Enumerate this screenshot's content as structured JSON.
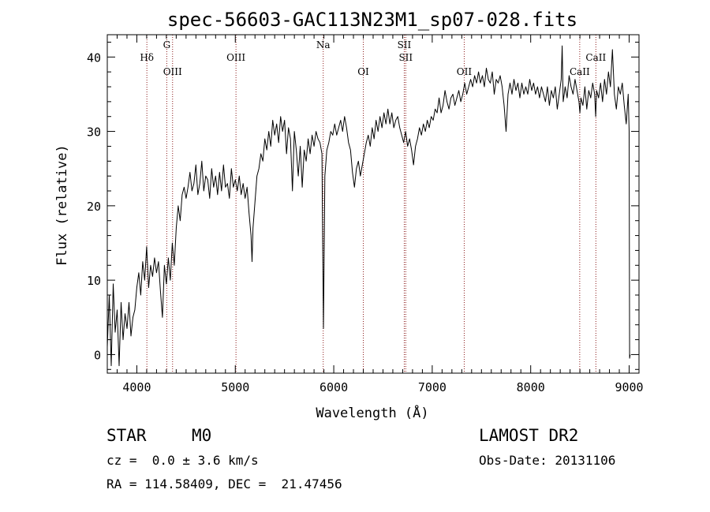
{
  "chart_data": {
    "type": "line",
    "title": "spec-56603-GAC113N23M1_sp07-028.fits",
    "xlabel": "Wavelength (Å)",
    "ylabel": "Flux (relative)",
    "xlim": [
      3700,
      9100
    ],
    "ylim": [
      -2.5,
      43
    ],
    "xticks": [
      4000,
      5000,
      6000,
      7000,
      8000,
      9000
    ],
    "yticks": [
      0,
      10,
      20,
      30,
      40
    ],
    "series_color": "#000000",
    "line_color": "#8b1a1a",
    "spectrum": [
      [
        3700,
        1.0
      ],
      [
        3720,
        8.0
      ],
      [
        3740,
        -1.5
      ],
      [
        3760,
        9.5
      ],
      [
        3780,
        3.0
      ],
      [
        3800,
        6.0
      ],
      [
        3820,
        -1.5
      ],
      [
        3840,
        7.0
      ],
      [
        3860,
        2.0
      ],
      [
        3880,
        5.5
      ],
      [
        3900,
        3.5
      ],
      [
        3920,
        7.0
      ],
      [
        3940,
        2.5
      ],
      [
        3960,
        5.0
      ],
      [
        3980,
        6.0
      ],
      [
        4000,
        9.0
      ],
      [
        4020,
        11.0
      ],
      [
        4040,
        8.0
      ],
      [
        4060,
        12.5
      ],
      [
        4080,
        10.0
      ],
      [
        4100,
        14.5
      ],
      [
        4120,
        9.0
      ],
      [
        4140,
        12.0
      ],
      [
        4160,
        10.5
      ],
      [
        4180,
        13.0
      ],
      [
        4200,
        11.0
      ],
      [
        4220,
        12.5
      ],
      [
        4240,
        8.5
      ],
      [
        4260,
        5.0
      ],
      [
        4280,
        12.0
      ],
      [
        4300,
        9.5
      ],
      [
        4320,
        13.0
      ],
      [
        4340,
        10.0
      ],
      [
        4360,
        15.0
      ],
      [
        4380,
        12.0
      ],
      [
        4400,
        17.0
      ],
      [
        4420,
        20.0
      ],
      [
        4440,
        18.0
      ],
      [
        4460,
        21.5
      ],
      [
        4480,
        22.5
      ],
      [
        4500,
        21.0
      ],
      [
        4520,
        22.5
      ],
      [
        4540,
        24.5
      ],
      [
        4560,
        22.0
      ],
      [
        4580,
        23.0
      ],
      [
        4600,
        25.5
      ],
      [
        4620,
        21.5
      ],
      [
        4640,
        23.0
      ],
      [
        4660,
        26.0
      ],
      [
        4680,
        22.0
      ],
      [
        4700,
        24.0
      ],
      [
        4720,
        23.5
      ],
      [
        4740,
        21.0
      ],
      [
        4760,
        25.0
      ],
      [
        4780,
        22.5
      ],
      [
        4800,
        24.0
      ],
      [
        4820,
        21.5
      ],
      [
        4840,
        24.5
      ],
      [
        4860,
        22.0
      ],
      [
        4880,
        25.5
      ],
      [
        4900,
        22.5
      ],
      [
        4920,
        23.0
      ],
      [
        4940,
        21.0
      ],
      [
        4960,
        25.0
      ],
      [
        4980,
        22.5
      ],
      [
        5000,
        23.5
      ],
      [
        5020,
        22.0
      ],
      [
        5040,
        24.0
      ],
      [
        5060,
        21.5
      ],
      [
        5080,
        23.0
      ],
      [
        5100,
        21.0
      ],
      [
        5120,
        22.5
      ],
      [
        5140,
        19.0
      ],
      [
        5160,
        16.0
      ],
      [
        5170,
        12.5
      ],
      [
        5180,
        17.0
      ],
      [
        5200,
        20.5
      ],
      [
        5220,
        24.0
      ],
      [
        5240,
        25.0
      ],
      [
        5260,
        27.0
      ],
      [
        5280,
        26.0
      ],
      [
        5300,
        29.0
      ],
      [
        5320,
        27.5
      ],
      [
        5340,
        30.0
      ],
      [
        5360,
        28.0
      ],
      [
        5380,
        31.5
      ],
      [
        5400,
        29.5
      ],
      [
        5420,
        31.0
      ],
      [
        5440,
        28.5
      ],
      [
        5460,
        32.0
      ],
      [
        5480,
        30.0
      ],
      [
        5500,
        31.5
      ],
      [
        5520,
        27.0
      ],
      [
        5540,
        30.5
      ],
      [
        5560,
        29.0
      ],
      [
        5580,
        22.0
      ],
      [
        5600,
        30.0
      ],
      [
        5620,
        27.5
      ],
      [
        5640,
        24.0
      ],
      [
        5660,
        28.0
      ],
      [
        5680,
        22.5
      ],
      [
        5700,
        27.5
      ],
      [
        5720,
        26.0
      ],
      [
        5740,
        29.0
      ],
      [
        5760,
        27.0
      ],
      [
        5780,
        29.5
      ],
      [
        5800,
        28.0
      ],
      [
        5820,
        30.0
      ],
      [
        5840,
        29.0
      ],
      [
        5860,
        28.5
      ],
      [
        5880,
        27.0
      ],
      [
        5890,
        12.0
      ],
      [
        5895,
        3.5
      ],
      [
        5900,
        10.0
      ],
      [
        5910,
        24.0
      ],
      [
        5930,
        27.5
      ],
      [
        5950,
        28.5
      ],
      [
        5970,
        30.0
      ],
      [
        5990,
        29.5
      ],
      [
        6010,
        31.0
      ],
      [
        6030,
        29.5
      ],
      [
        6050,
        30.5
      ],
      [
        6070,
        31.5
      ],
      [
        6090,
        30.0
      ],
      [
        6110,
        32.0
      ],
      [
        6130,
        30.5
      ],
      [
        6150,
        28.5
      ],
      [
        6170,
        27.5
      ],
      [
        6190,
        24.5
      ],
      [
        6210,
        22.5
      ],
      [
        6230,
        25.0
      ],
      [
        6250,
        26.0
      ],
      [
        6270,
        24.0
      ],
      [
        6290,
        25.5
      ],
      [
        6310,
        27.0
      ],
      [
        6330,
        28.5
      ],
      [
        6350,
        29.5
      ],
      [
        6370,
        28.0
      ],
      [
        6390,
        30.5
      ],
      [
        6410,
        29.0
      ],
      [
        6430,
        31.5
      ],
      [
        6450,
        30.0
      ],
      [
        6470,
        32.0
      ],
      [
        6490,
        30.5
      ],
      [
        6510,
        32.5
      ],
      [
        6530,
        31.0
      ],
      [
        6550,
        33.0
      ],
      [
        6570,
        31.0
      ],
      [
        6590,
        32.5
      ],
      [
        6610,
        30.5
      ],
      [
        6630,
        31.5
      ],
      [
        6650,
        32.0
      ],
      [
        6670,
        30.5
      ],
      [
        6690,
        29.5
      ],
      [
        6710,
        28.5
      ],
      [
        6730,
        30.0
      ],
      [
        6750,
        28.0
      ],
      [
        6770,
        29.0
      ],
      [
        6790,
        27.5
      ],
      [
        6810,
        25.5
      ],
      [
        6830,
        28.0
      ],
      [
        6850,
        29.0
      ],
      [
        6870,
        30.5
      ],
      [
        6890,
        29.5
      ],
      [
        6910,
        31.0
      ],
      [
        6930,
        30.0
      ],
      [
        6950,
        31.5
      ],
      [
        6970,
        30.5
      ],
      [
        6990,
        32.0
      ],
      [
        7010,
        31.5
      ],
      [
        7030,
        33.0
      ],
      [
        7050,
        32.5
      ],
      [
        7070,
        34.5
      ],
      [
        7090,
        32.5
      ],
      [
        7110,
        33.5
      ],
      [
        7130,
        35.5
      ],
      [
        7150,
        34.0
      ],
      [
        7170,
        33.0
      ],
      [
        7190,
        34.5
      ],
      [
        7210,
        35.0
      ],
      [
        7230,
        33.5
      ],
      [
        7250,
        34.5
      ],
      [
        7270,
        35.5
      ],
      [
        7290,
        34.0
      ],
      [
        7310,
        35.0
      ],
      [
        7330,
        36.5
      ],
      [
        7350,
        35.0
      ],
      [
        7370,
        36.0
      ],
      [
        7390,
        37.0
      ],
      [
        7410,
        36.0
      ],
      [
        7430,
        37.5
      ],
      [
        7450,
        36.5
      ],
      [
        7470,
        38.0
      ],
      [
        7490,
        36.5
      ],
      [
        7510,
        37.5
      ],
      [
        7530,
        36.0
      ],
      [
        7550,
        38.5
      ],
      [
        7570,
        37.0
      ],
      [
        7590,
        36.5
      ],
      [
        7610,
        38.0
      ],
      [
        7630,
        35.0
      ],
      [
        7650,
        37.0
      ],
      [
        7670,
        36.5
      ],
      [
        7690,
        37.5
      ],
      [
        7710,
        36.0
      ],
      [
        7730,
        33.5
      ],
      [
        7750,
        30.0
      ],
      [
        7770,
        35.0
      ],
      [
        7790,
        36.5
      ],
      [
        7810,
        35.0
      ],
      [
        7830,
        37.0
      ],
      [
        7850,
        35.5
      ],
      [
        7870,
        36.5
      ],
      [
        7890,
        34.5
      ],
      [
        7910,
        36.5
      ],
      [
        7930,
        35.0
      ],
      [
        7950,
        36.0
      ],
      [
        7970,
        35.0
      ],
      [
        7990,
        37.0
      ],
      [
        8010,
        35.5
      ],
      [
        8030,
        36.5
      ],
      [
        8050,
        35.0
      ],
      [
        8070,
        36.0
      ],
      [
        8090,
        34.5
      ],
      [
        8110,
        36.0
      ],
      [
        8130,
        35.0
      ],
      [
        8150,
        34.0
      ],
      [
        8170,
        36.0
      ],
      [
        8190,
        33.5
      ],
      [
        8210,
        35.5
      ],
      [
        8230,
        34.5
      ],
      [
        8250,
        36.0
      ],
      [
        8270,
        33.0
      ],
      [
        8290,
        35.0
      ],
      [
        8310,
        37.0
      ],
      [
        8320,
        41.5
      ],
      [
        8330,
        34.0
      ],
      [
        8350,
        36.0
      ],
      [
        8370,
        34.5
      ],
      [
        8390,
        37.5
      ],
      [
        8410,
        36.0
      ],
      [
        8430,
        35.0
      ],
      [
        8450,
        37.0
      ],
      [
        8470,
        35.5
      ],
      [
        8490,
        34.0
      ],
      [
        8500,
        32.5
      ],
      [
        8510,
        34.5
      ],
      [
        8530,
        33.5
      ],
      [
        8550,
        36.0
      ],
      [
        8570,
        33.0
      ],
      [
        8590,
        35.5
      ],
      [
        8610,
        34.5
      ],
      [
        8630,
        36.5
      ],
      [
        8650,
        35.0
      ],
      [
        8660,
        32.0
      ],
      [
        8670,
        35.5
      ],
      [
        8690,
        34.5
      ],
      [
        8710,
        36.5
      ],
      [
        8730,
        34.0
      ],
      [
        8750,
        37.0
      ],
      [
        8770,
        35.0
      ],
      [
        8790,
        38.0
      ],
      [
        8810,
        36.0
      ],
      [
        8830,
        41.0
      ],
      [
        8850,
        35.0
      ],
      [
        8870,
        33.0
      ],
      [
        8890,
        36.0
      ],
      [
        8910,
        35.0
      ],
      [
        8930,
        36.5
      ],
      [
        8950,
        33.5
      ],
      [
        8970,
        31.0
      ],
      [
        8990,
        35.0
      ],
      [
        9000,
        30.0
      ],
      [
        9005,
        -0.5
      ],
      [
        9010,
        0.0
      ]
    ],
    "lines": [
      {
        "label": "Hδ",
        "x": 4102,
        "row": "top"
      },
      {
        "label": "G",
        "x": 4304,
        "row": "upper"
      },
      {
        "label": "OIII",
        "x": 4363,
        "row": "middle"
      },
      {
        "label": "OIII",
        "x": 5007,
        "row": "top"
      },
      {
        "label": "Na",
        "x": 5893,
        "row": "upper"
      },
      {
        "label": "OI",
        "x": 6300,
        "row": "middle"
      },
      {
        "label": "SII",
        "x": 6716,
        "row": "upper"
      },
      {
        "label": "SII",
        "x": 6731,
        "row": "top"
      },
      {
        "label": "OII",
        "x": 7325,
        "row": "middle"
      },
      {
        "label": "CaII",
        "x": 8498,
        "row": "middle"
      },
      {
        "label": "CaII",
        "x": 8662,
        "row": "top"
      }
    ]
  },
  "info": {
    "object_class": "STAR",
    "subclass": "M0",
    "redshift": "cz =  0.0 ± 3.6 km/s",
    "coords": "RA = 114.58409, DEC =  21.47456",
    "survey": "LAMOST DR2",
    "obs_date": "Obs-Date: 20131106"
  }
}
